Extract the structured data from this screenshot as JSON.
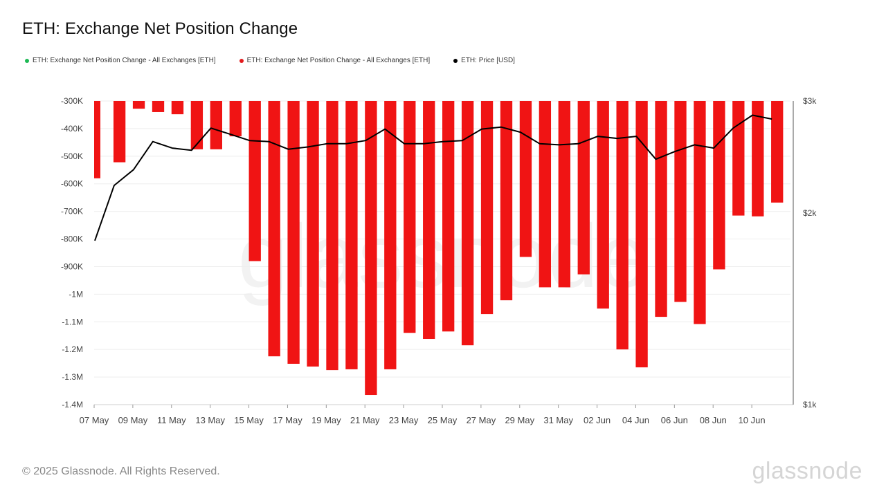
{
  "title": "ETH: Exchange Net Position Change",
  "legend": [
    {
      "label": "ETH: Exchange Net Position Change - All Exchanges [ETH]",
      "color": "#1db954"
    },
    {
      "label": "ETH: Exchange Net Position Change - All Exchanges [ETH]",
      "color": "#e31a1c"
    },
    {
      "label": "ETH: Price [USD]",
      "color": "#000000"
    }
  ],
  "footer": "© 2025 Glassnode. All Rights Reserved.",
  "brand": "glassnode",
  "watermark": "glassnode",
  "colors": {
    "bar": "#f01414",
    "line": "#000000",
    "grid": "#eeeeee"
  },
  "chart_data": {
    "type": "bar",
    "title": "ETH: Exchange Net Position Change",
    "x": [
      "07 May",
      "08 May",
      "09 May",
      "10 May",
      "11 May",
      "12 May",
      "13 May",
      "14 May",
      "15 May",
      "16 May",
      "17 May",
      "18 May",
      "19 May",
      "20 May",
      "21 May",
      "22 May",
      "23 May",
      "24 May",
      "25 May",
      "26 May",
      "27 May",
      "28 May",
      "29 May",
      "30 May",
      "31 May",
      "01 Jun",
      "02 Jun",
      "03 Jun",
      "04 Jun",
      "05 Jun",
      "06 Jun",
      "07 Jun",
      "08 Jun",
      "09 Jun",
      "10 Jun",
      "11 Jun"
    ],
    "x_tick_labels": [
      "07 May",
      "09 May",
      "11 May",
      "13 May",
      "15 May",
      "17 May",
      "19 May",
      "21 May",
      "23 May",
      "25 May",
      "27 May",
      "29 May",
      "31 May",
      "02 Jun",
      "04 Jun",
      "06 Jun",
      "08 Jun",
      "10 Jun"
    ],
    "series": [
      {
        "name": "ETH: Exchange Net Position Change - All Exchanges [ETH]",
        "type": "bar",
        "axis": "left",
        "values": [
          -580000,
          -522000,
          -328000,
          -340000,
          -348000,
          -475000,
          -475000,
          -428000,
          -880000,
          -1225000,
          -1252000,
          -1262000,
          -1275000,
          -1272000,
          -1365000,
          -1272000,
          -1140000,
          -1162000,
          -1135000,
          -1185000,
          -1072000,
          -1022000,
          -865000,
          -975000,
          -975000,
          -928000,
          -1052000,
          -1200000,
          -1265000,
          -1082000,
          -1028000,
          -1108000,
          -910000,
          -715000,
          -718000,
          -668000
        ]
      },
      {
        "name": "ETH: Price [USD]",
        "type": "line",
        "axis": "right",
        "values": [
          1810,
          2210,
          2340,
          2590,
          2530,
          2510,
          2720,
          2660,
          2600,
          2590,
          2520,
          2540,
          2570,
          2570,
          2600,
          2710,
          2570,
          2570,
          2590,
          2600,
          2710,
          2730,
          2680,
          2570,
          2560,
          2570,
          2640,
          2620,
          2640,
          2430,
          2500,
          2560,
          2530,
          2720,
          2850,
          2810
        ]
      }
    ],
    "y_left": {
      "min": -1400000,
      "max": -300000,
      "ticks": [
        -300000,
        -400000,
        -500000,
        -600000,
        -700000,
        -800000,
        -900000,
        -1000000,
        -1100000,
        -1200000,
        -1300000,
        -1400000
      ],
      "tick_labels": [
        "-300K",
        "-400K",
        "-500K",
        "-600K",
        "-700K",
        "-800K",
        "-900K",
        "-1M",
        "-1.1M",
        "-1.2M",
        "-1.3M",
        "-1.4M"
      ]
    },
    "y_right": {
      "min": 1000,
      "max": 3000,
      "scale": "log",
      "ticks": [
        3000,
        2000,
        1000
      ],
      "tick_labels": [
        "$3k",
        "$2k",
        "$1k"
      ]
    },
    "grid": true,
    "legend_position": "top-left"
  }
}
